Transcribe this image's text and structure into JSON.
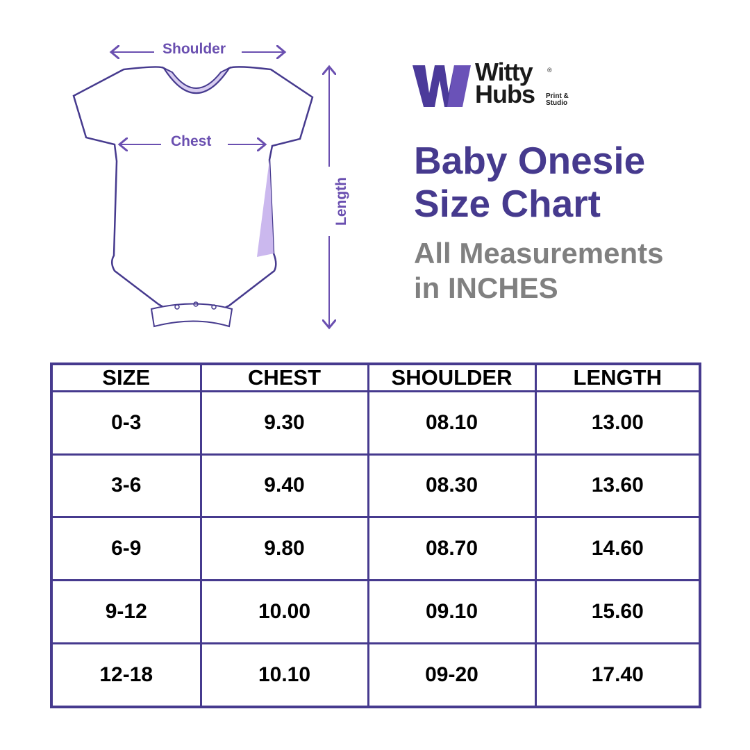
{
  "brand": {
    "name_line1": "Witty",
    "name_line2": "Hubs",
    "tagline_line1": "Print &",
    "tagline_line2": "Studio",
    "registered": "®",
    "colors": {
      "primary": "#463a8e",
      "accent": "#6a4fb0"
    }
  },
  "title": {
    "line1": "Baby Onesie",
    "line2": "Size Chart"
  },
  "subtitle": {
    "line1": "All Measurements",
    "line2": "in INCHES"
  },
  "diagram": {
    "shoulder": "Shoulder",
    "chest": "Chest",
    "length": "Length"
  },
  "table": {
    "headers": [
      "SIZE",
      "CHEST",
      "SHOULDER",
      "LENGTH"
    ],
    "rows": [
      [
        "0-3",
        "9.30",
        "08.10",
        "13.00"
      ],
      [
        "3-6",
        "9.40",
        "08.30",
        "13.60"
      ],
      [
        "6-9",
        "9.80",
        "08.70",
        "14.60"
      ],
      [
        "9-12",
        "10.00",
        "09.10",
        "15.60"
      ],
      [
        "12-18",
        "10.10",
        "09-20",
        "17.40"
      ]
    ]
  }
}
